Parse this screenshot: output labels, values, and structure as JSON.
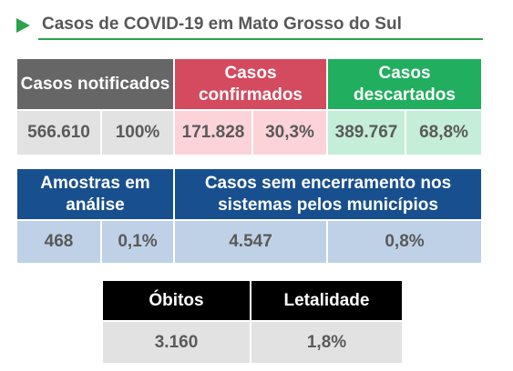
{
  "title": "Casos de COVID-19 em Mato Grosso do Sul",
  "colors": {
    "accent_green": "#2aa34a",
    "notificados_header": "#666666",
    "confirmados_header": "#d44a5e",
    "descartados_header": "#21ae5e",
    "amostras_header": "#184f8e",
    "obitos_header": "#000000"
  },
  "row1": {
    "notificados": {
      "label": "Casos notificados",
      "count": "566.610",
      "percent": "100%"
    },
    "confirmados": {
      "label": "Casos confirmados",
      "count": "171.828",
      "percent": "30,3%"
    },
    "descartados": {
      "label": "Casos descartados",
      "count": "389.767",
      "percent": "68,8%"
    }
  },
  "row2": {
    "amostras": {
      "label": "Amostras em análise",
      "count": "468",
      "percent": "0,1%"
    },
    "sem_encerramento": {
      "label": "Casos sem encerramento nos sistemas pelos municípios",
      "count": "4.547",
      "percent": "0,8%"
    }
  },
  "row3": {
    "obitos": {
      "label": "Óbitos",
      "value": "3.160"
    },
    "letalidade": {
      "label": "Letalidade",
      "value": "1,8%"
    }
  }
}
